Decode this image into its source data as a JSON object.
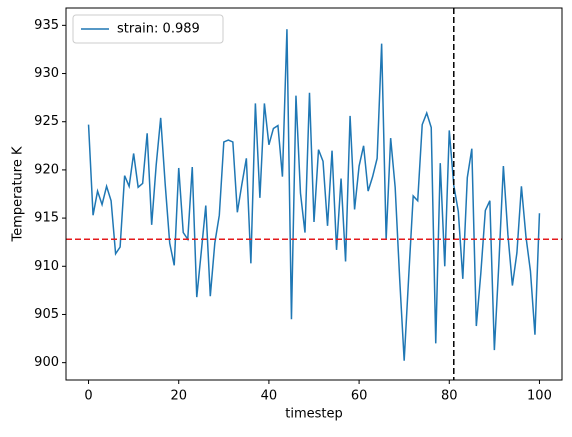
{
  "chart_data": {
    "type": "line",
    "xlabel": "timestep",
    "ylabel": "Temperature K",
    "x": [
      0,
      1,
      2,
      3,
      4,
      5,
      6,
      7,
      8,
      9,
      10,
      11,
      12,
      13,
      14,
      15,
      16,
      17,
      18,
      19,
      20,
      21,
      22,
      23,
      24,
      25,
      26,
      27,
      28,
      29,
      30,
      31,
      32,
      33,
      34,
      35,
      36,
      37,
      38,
      39,
      40,
      41,
      42,
      43,
      44,
      45,
      46,
      47,
      48,
      49,
      50,
      51,
      52,
      53,
      54,
      55,
      56,
      57,
      58,
      59,
      60,
      61,
      62,
      63,
      64,
      65,
      66,
      67,
      68,
      69,
      70,
      71,
      72,
      73,
      74,
      75,
      76,
      77,
      78,
      79,
      80,
      81,
      82,
      83,
      84,
      85,
      86,
      87,
      88,
      89,
      90,
      91,
      92,
      93,
      94,
      95,
      96,
      97,
      98,
      99,
      100
    ],
    "series": [
      {
        "name": "strain: 0.989",
        "color": "#1f77b4",
        "values": [
          924.7,
          915.3,
          917.8,
          916.4,
          918.3,
          916.8,
          911.3,
          912.0,
          919.4,
          918.3,
          921.7,
          918.2,
          918.6,
          923.8,
          914.3,
          920.5,
          925.4,
          918.5,
          912.4,
          910.1,
          920.2,
          913.5,
          912.8,
          920.3,
          906.8,
          911.5,
          916.3,
          906.9,
          912.4,
          915.3,
          922.9,
          923.1,
          922.9,
          915.6,
          918.5,
          921.2,
          910.3,
          926.9,
          917.1,
          926.9,
          922.6,
          924.3,
          924.6,
          919.3,
          934.6,
          904.5,
          927.7,
          917.6,
          913.5,
          928.0,
          914.6,
          922.1,
          920.9,
          914.2,
          922.0,
          911.7,
          919.1,
          910.5,
          925.6,
          915.9,
          920.4,
          922.5,
          917.8,
          919.3,
          921.2,
          933.1,
          912.8,
          923.3,
          918.2,
          908.7,
          900.2,
          908.9,
          917.3,
          916.8,
          924.7,
          925.9,
          924.4,
          902.0,
          920.7,
          910.0,
          924.1,
          918.4,
          915.7,
          908.7,
          919.2,
          922.2,
          903.8,
          909.3,
          915.8,
          916.8,
          901.3,
          910.3,
          920.4,
          913.3,
          908.0,
          911.4,
          918.3,
          913.1,
          909.5,
          902.9,
          915.5
        ]
      }
    ],
    "hline": {
      "y": 912.8,
      "color": "#e41a1c"
    },
    "vline": {
      "x": 81,
      "color": "#000000"
    },
    "xlim": [
      -5,
      105
    ],
    "xticks": [
      0,
      20,
      40,
      60,
      80,
      100
    ],
    "ylim": [
      898.2,
      936.8
    ],
    "yticks": [
      900,
      905,
      910,
      915,
      920,
      925,
      930,
      935
    ],
    "legend": "upper left"
  }
}
